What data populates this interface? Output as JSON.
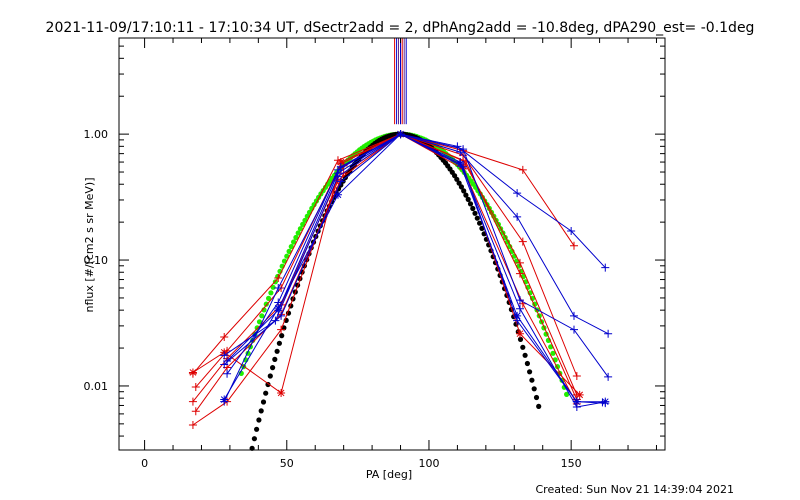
{
  "chart_data": {
    "type": "line",
    "title": "2021-11-09/17:10:11 - 17:10:34 UT, dSectr2add = 2, dPhAng2add = -10.8deg, dPA290_est= -0.1deg",
    "xlabel": "PA [deg]",
    "ylabel": "nflux [#/(cm2 s sr MeV)]",
    "footer": "Created: Sun Nov 21 14:39:04 2021",
    "xlim": [
      -9,
      183
    ],
    "ylim": [
      0.0031,
      5.8
    ],
    "yscale": "log",
    "x_ticks": [
      0,
      50,
      100,
      150
    ],
    "x_tick_labels": [
      "0",
      "50",
      "100",
      "150"
    ],
    "y_ticks": [
      0.01,
      0.1,
      1.0
    ],
    "y_tick_labels": [
      "0.01",
      "0.10",
      "1.00"
    ],
    "grid": false,
    "legend": "none",
    "colors": {
      "red": "#dd0000",
      "blue": "#0000cc",
      "green": "#22ee00",
      "black": "#000000",
      "purple": "#6a2a8a"
    },
    "vertical_markers": [
      87.9,
      88.6,
      89.3,
      90.0,
      90.6,
      91.3,
      92.0
    ],
    "vertical_marker_range": [
      1.2,
      5.8
    ],
    "series": [
      {
        "color": "red",
        "marker": "plus",
        "points": [
          [
            17,
            0.0125
          ],
          [
            28,
            0.0245
          ],
          [
            47,
            0.072
          ],
          [
            68,
            0.62
          ],
          [
            90,
            1.0
          ],
          [
            112,
            0.74
          ],
          [
            133,
            0.52
          ],
          [
            151,
            0.13
          ]
        ]
      },
      {
        "color": "red",
        "marker": "plus",
        "points": [
          [
            18,
            0.0098
          ],
          [
            29,
            0.019
          ],
          [
            48,
            0.06
          ],
          [
            69,
            0.58
          ],
          [
            90,
            1.0
          ],
          [
            112,
            0.68
          ],
          [
            133,
            0.14
          ],
          [
            152,
            0.012
          ]
        ]
      },
      {
        "color": "red",
        "marker": "plus",
        "points": [
          [
            17,
            0.0075
          ],
          [
            29,
            0.0165
          ],
          [
            48,
            0.044
          ],
          [
            70,
            0.56
          ],
          [
            90,
            1.0
          ],
          [
            112,
            0.62
          ],
          [
            132,
            0.095
          ],
          [
            152,
            0.0085
          ]
        ]
      },
      {
        "color": "red",
        "marker": "plus",
        "points": [
          [
            18,
            0.0063
          ],
          [
            29,
            0.014
          ],
          [
            48,
            0.037
          ],
          [
            70,
            0.49
          ],
          [
            90,
            1.0
          ],
          [
            113,
            0.6
          ],
          [
            132,
            0.078
          ],
          [
            152,
            0.0078
          ]
        ]
      },
      {
        "color": "red",
        "marker": "plus",
        "points": [
          [
            17,
            0.0049
          ],
          [
            29,
            0.0075
          ],
          [
            48,
            0.028
          ],
          [
            68,
            0.43
          ],
          [
            90,
            1.0
          ],
          [
            112,
            0.53
          ],
          [
            133,
            0.045
          ],
          [
            152,
            0.0072
          ]
        ]
      },
      {
        "color": "red",
        "marker": "star",
        "points": [
          [
            17,
            0.0128
          ],
          [
            28,
            0.0185
          ],
          [
            48,
            0.0088
          ],
          [
            69,
            0.6
          ],
          [
            90,
            1.0
          ],
          [
            112,
            0.56
          ],
          [
            132,
            0.026
          ],
          [
            153,
            0.0085
          ]
        ]
      },
      {
        "color": "blue",
        "marker": "plus",
        "points": [
          [
            28,
            0.0075
          ],
          [
            47,
            0.06
          ],
          [
            69,
            0.55
          ],
          [
            90,
            1.0
          ],
          [
            110,
            0.8
          ],
          [
            131,
            0.34
          ],
          [
            150,
            0.17
          ],
          [
            162,
            0.087
          ]
        ]
      },
      {
        "color": "blue",
        "marker": "plus",
        "points": [
          [
            29,
            0.0125
          ],
          [
            47,
            0.046
          ],
          [
            68,
            0.52
          ],
          [
            90,
            1.0
          ],
          [
            111,
            0.72
          ],
          [
            131,
            0.22
          ],
          [
            151,
            0.036
          ],
          [
            163,
            0.026
          ]
        ]
      },
      {
        "color": "blue",
        "marker": "plus",
        "points": [
          [
            29,
            0.0158
          ],
          [
            47,
            0.04
          ],
          [
            68,
            0.49
          ],
          [
            90,
            1.0
          ],
          [
            112,
            0.76
          ],
          [
            132,
            0.048
          ],
          [
            151,
            0.028
          ],
          [
            163,
            0.0118
          ]
        ]
      },
      {
        "color": "blue",
        "marker": "plus",
        "points": [
          [
            28,
            0.0175
          ],
          [
            46,
            0.033
          ],
          [
            68,
            0.46
          ],
          [
            90,
            1.0
          ],
          [
            112,
            0.55
          ],
          [
            131,
            0.033
          ],
          [
            152,
            0.0075
          ],
          [
            162,
            0.0073
          ]
        ]
      },
      {
        "color": "blue",
        "marker": "plus",
        "points": [
          [
            28,
            0.0148
          ],
          [
            48,
            0.036
          ],
          [
            69,
            0.42
          ],
          [
            90,
            1.0
          ],
          [
            111,
            0.6
          ],
          [
            132,
            0.041
          ],
          [
            152,
            0.0068
          ],
          [
            161,
            0.0074
          ]
        ]
      },
      {
        "color": "blue",
        "marker": "star",
        "points": [
          [
            28,
            0.0078
          ],
          [
            47,
            0.0415
          ],
          [
            68,
            0.33
          ],
          [
            90,
            1.0
          ],
          [
            111,
            0.58
          ],
          [
            131,
            0.036
          ],
          [
            152,
            0.0075
          ],
          [
            162,
            0.0075
          ]
        ]
      }
    ],
    "fit_curves": [
      {
        "color": "green",
        "center": 90,
        "sigma": 18.93,
        "x_range": [
          34,
          149
        ]
      },
      {
        "color": "black",
        "center": 90,
        "sigma": 15.4,
        "x_range": [
          37,
          139
        ]
      }
    ]
  }
}
